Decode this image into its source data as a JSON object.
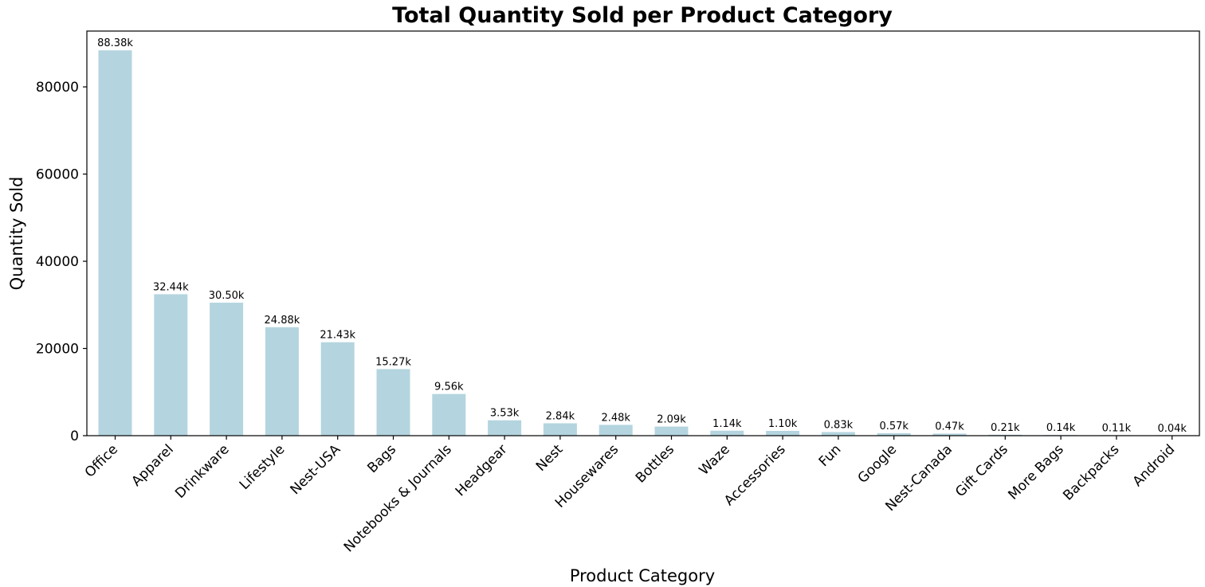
{
  "chart_data": {
    "type": "bar",
    "title": "Total Quantity Sold per Product Category",
    "xlabel": "Product Category",
    "ylabel": "Quantity Sold",
    "categories": [
      "Office",
      "Apparel",
      "Drinkware",
      "Lifestyle",
      "Nest-USA",
      "Bags",
      "Notebooks & Journals",
      "Headgear",
      "Nest",
      "Housewares",
      "Bottles",
      "Waze",
      "Accessories",
      "Fun",
      "Google",
      "Nest-Canada",
      "Gift Cards",
      "More Bags",
      "Backpacks",
      "Android"
    ],
    "values": [
      88380,
      32440,
      30500,
      24880,
      21430,
      15270,
      9560,
      3530,
      2840,
      2480,
      2090,
      1140,
      1100,
      830,
      570,
      470,
      210,
      140,
      110,
      40
    ],
    "data_labels": [
      "88.38k",
      "32.44k",
      "30.50k",
      "24.88k",
      "21.43k",
      "15.27k",
      "9.56k",
      "3.53k",
      "2.84k",
      "2.48k",
      "2.09k",
      "1.14k",
      "1.10k",
      "0.83k",
      "0.57k",
      "0.47k",
      "0.21k",
      "0.14k",
      "0.11k",
      "0.04k"
    ],
    "ylim": [
      0,
      92800
    ],
    "yticks": [
      0,
      20000,
      40000,
      60000,
      80000
    ],
    "ytick_labels": [
      "0",
      "20000",
      "40000",
      "60000",
      "80000"
    ],
    "bar_color": "#b4d5df",
    "grid": false,
    "legend": "none"
  }
}
